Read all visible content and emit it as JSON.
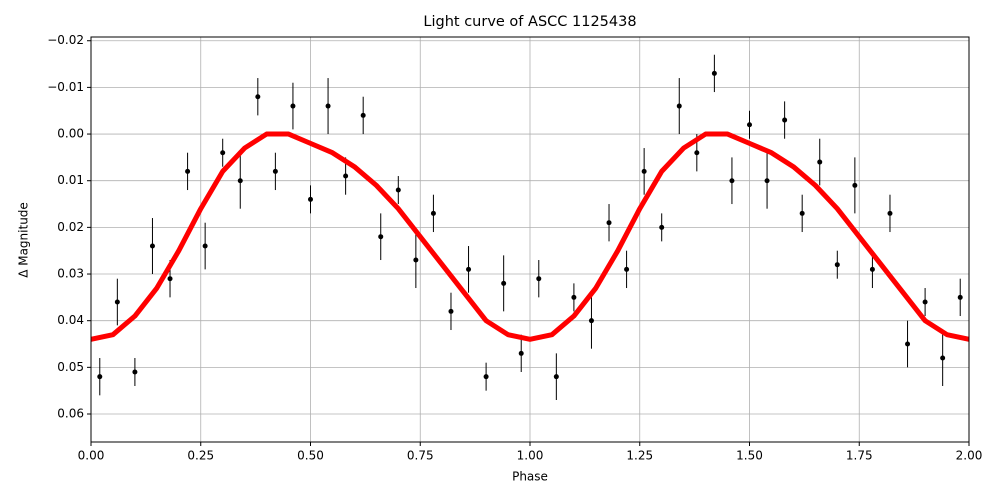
{
  "chart_data": {
    "type": "scatter",
    "title": "Light curve of ASCC 1125438",
    "x_label": "Phase",
    "y_label": "Δ Magnitude",
    "xlim": [
      0,
      2
    ],
    "ylim": [
      -0.0208,
      0.066
    ],
    "y_inverted": true,
    "grid": true,
    "xticks": [
      {
        "value": 0,
        "label": "0.00"
      },
      {
        "value": 0.25,
        "label": "0.25"
      },
      {
        "value": 0.5,
        "label": "0.50"
      },
      {
        "value": 0.75,
        "label": "0.75"
      },
      {
        "value": 1,
        "label": "1.00"
      },
      {
        "value": 1.25,
        "label": "1.25"
      },
      {
        "value": 1.5,
        "label": "1.50"
      },
      {
        "value": 1.75,
        "label": "1.75"
      },
      {
        "value": 2,
        "label": "2.00"
      }
    ],
    "yticks": [
      {
        "value": -0.02,
        "label": "−0.02"
      },
      {
        "value": -0.01,
        "label": "−0.01"
      },
      {
        "value": 0,
        "label": "0.00"
      },
      {
        "value": 0.01,
        "label": "0.01"
      },
      {
        "value": 0.02,
        "label": "0.02"
      },
      {
        "value": 0.03,
        "label": "0.03"
      },
      {
        "value": 0.04,
        "label": "0.04"
      },
      {
        "value": 0.05,
        "label": "0.05"
      },
      {
        "value": 0.06,
        "label": "0.06"
      }
    ],
    "series": [
      {
        "type": "errorbar",
        "color": "#000000",
        "x": [
          0.02,
          0.06,
          0.1,
          0.14,
          0.18,
          0.22,
          0.26,
          0.3,
          0.34,
          0.38,
          0.42,
          0.46,
          0.5,
          0.54,
          0.58,
          0.62,
          0.66,
          0.7,
          0.74,
          0.78,
          0.82,
          0.86,
          0.9,
          0.94,
          0.98,
          1.02,
          1.06,
          1.1,
          1.14,
          1.18,
          1.22,
          1.26,
          1.3,
          1.34,
          1.38,
          1.42,
          1.46,
          1.5,
          1.54,
          1.58,
          1.62,
          1.66,
          1.7,
          1.74,
          1.78,
          1.82,
          1.86,
          1.9,
          1.94,
          1.98
        ],
        "values": [
          0.052,
          0.036,
          0.051,
          0.024,
          0.031,
          0.008,
          0.024,
          0.004,
          0.01,
          -0.008,
          0.008,
          -0.006,
          0.014,
          -0.006,
          0.009,
          -0.004,
          0.022,
          0.012,
          0.027,
          0.017,
          0.038,
          0.029,
          0.052,
          0.032,
          0.047,
          0.031,
          0.052,
          0.035,
          0.04,
          0.019,
          0.029,
          0.008,
          0.02,
          -0.006,
          0.004,
          -0.013,
          0.01,
          -0.002,
          0.01,
          -0.003,
          0.017,
          0.006,
          0.028,
          0.011,
          0.029,
          0.017,
          0.045,
          0.036,
          0.048,
          0.035
        ],
        "errors": [
          0.004,
          0.005,
          0.003,
          0.006,
          0.004,
          0.004,
          0.005,
          0.003,
          0.006,
          0.004,
          0.004,
          0.005,
          0.003,
          0.006,
          0.004,
          0.004,
          0.005,
          0.003,
          0.006,
          0.004,
          0.004,
          0.005,
          0.003,
          0.006,
          0.004,
          0.004,
          0.005,
          0.003,
          0.006,
          0.004,
          0.004,
          0.005,
          0.003,
          0.006,
          0.004,
          0.004,
          0.005,
          0.003,
          0.006,
          0.004,
          0.004,
          0.005,
          0.003,
          0.006,
          0.004,
          0.004,
          0.005,
          0.003,
          0.006,
          0.004
        ]
      },
      {
        "type": "line",
        "color": "#ff0000",
        "x": [
          0,
          0.05,
          0.1,
          0.15,
          0.2,
          0.25,
          0.3,
          0.35,
          0.4,
          0.45,
          0.5,
          0.55,
          0.6,
          0.65,
          0.7,
          0.75,
          0.8,
          0.85,
          0.9,
          0.95,
          1,
          1.05,
          1.1,
          1.15,
          1.2,
          1.25,
          1.3,
          1.35,
          1.4,
          1.45,
          1.5,
          1.55,
          1.6,
          1.65,
          1.7,
          1.75,
          1.8,
          1.85,
          1.9,
          1.95,
          2
        ],
        "values": [
          0.044,
          0.043,
          0.039,
          0.033,
          0.025,
          0.016,
          0.008,
          0.003,
          0.0,
          0.0,
          0.002,
          0.004,
          0.007,
          0.011,
          0.016,
          0.022,
          0.028,
          0.034,
          0.04,
          0.043,
          0.044,
          0.043,
          0.039,
          0.033,
          0.025,
          0.016,
          0.008,
          0.003,
          0.0,
          0.0,
          0.002,
          0.004,
          0.007,
          0.011,
          0.016,
          0.022,
          0.028,
          0.034,
          0.04,
          0.043,
          0.044
        ]
      }
    ]
  }
}
